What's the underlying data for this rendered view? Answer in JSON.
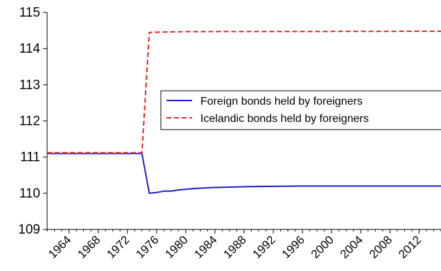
{
  "chart_data": {
    "type": "line",
    "title": "",
    "xlabel": "",
    "ylabel": "",
    "xlim": [
      1961,
      2015
    ],
    "ylim": [
      109,
      115
    ],
    "y_ticks": [
      109,
      110,
      111,
      112,
      113,
      114,
      115
    ],
    "x_tick_labels": [
      "1964",
      "1968",
      "1972",
      "1976",
      "1980",
      "1984",
      "1988",
      "1992",
      "1996",
      "2000",
      "2004",
      "2008",
      "2012"
    ],
    "grid": false,
    "legend_position": "right-center",
    "series": [
      {
        "name": "Foreign bonds held by foreigners",
        "color": "#1c1ccc",
        "dash": "solid",
        "points": [
          [
            1961,
            111.1
          ],
          [
            1974,
            111.1
          ],
          [
            1975,
            110.0
          ],
          [
            1976,
            110.02
          ],
          [
            1977,
            110.06
          ],
          [
            1978,
            110.06
          ],
          [
            1979,
            110.09
          ],
          [
            1980,
            110.11
          ],
          [
            1981,
            110.13
          ],
          [
            1982,
            110.14
          ],
          [
            1983,
            110.15
          ],
          [
            1984,
            110.16
          ],
          [
            1986,
            110.17
          ],
          [
            1988,
            110.18
          ],
          [
            1992,
            110.19
          ],
          [
            1996,
            110.2
          ],
          [
            2015,
            110.2
          ]
        ]
      },
      {
        "name": "Icelandic bonds held by foreigners",
        "color": "#e32121",
        "dash": "dashed",
        "points": [
          [
            1961,
            111.12
          ],
          [
            1974,
            111.12
          ],
          [
            1975,
            114.45
          ],
          [
            1980,
            114.47
          ],
          [
            2015,
            114.48
          ]
        ]
      }
    ]
  }
}
